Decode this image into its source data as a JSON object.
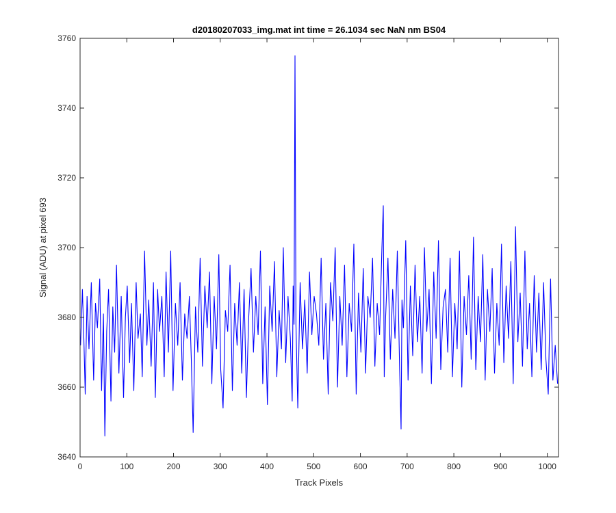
{
  "chart_data": {
    "type": "line",
    "title": "d20180207033_img.mat int time = 26.1034 sec  NaN nm BS04",
    "xlabel": "Track Pixels",
    "ylabel": "Signal (ADU) at pixel 693",
    "xlim": [
      0,
      1024
    ],
    "ylim": [
      3640,
      3760
    ],
    "xticks": [
      0,
      100,
      200,
      300,
      400,
      500,
      600,
      700,
      800,
      900,
      1000
    ],
    "yticks": [
      3640,
      3660,
      3680,
      3700,
      3720,
      3740,
      3760
    ],
    "grid": false,
    "legend": "none",
    "series": [
      {
        "color": "#0000ff",
        "x": [
          1,
          5,
          8,
          11,
          15,
          19,
          24,
          29,
          33,
          37,
          42,
          46,
          50,
          53,
          57,
          61,
          66,
          70,
          74,
          78,
          83,
          88,
          93,
          97,
          101,
          106,
          110,
          115,
          120,
          124,
          129,
          133,
          138,
          143,
          147,
          152,
          157,
          161,
          166,
          170,
          175,
          180,
          184,
          189,
          194,
          199,
          204,
          209,
          214,
          219,
          224,
          229,
          234,
          238,
          242,
          247,
          252,
          257,
          262,
          267,
          272,
          277,
          282,
          287,
          292,
          297,
          301,
          306,
          311,
          316,
          321,
          326,
          331,
          336,
          341,
          346,
          351,
          356,
          361,
          366,
          371,
          376,
          381,
          386,
          391,
          396,
          401,
          406,
          411,
          416,
          421,
          426,
          431,
          435,
          440,
          445,
          450,
          454,
          456,
          458,
          460,
          462,
          466,
          471,
          476,
          481,
          486,
          491,
          496,
          501,
          506,
          511,
          516,
          521,
          526,
          531,
          536,
          541,
          546,
          551,
          556,
          561,
          566,
          571,
          576,
          581,
          586,
          591,
          596,
          601,
          606,
          611,
          616,
          621,
          626,
          631,
          636,
          641,
          646,
          649,
          651,
          654,
          659,
          664,
          669,
          674,
          679,
          684,
          687,
          689,
          692,
          697,
          702,
          707,
          712,
          717,
          722,
          727,
          732,
          737,
          742,
          747,
          752,
          757,
          762,
          767,
          772,
          777,
          782,
          787,
          792,
          797,
          802,
          807,
          812,
          817,
          822,
          827,
          832,
          837,
          842,
          847,
          852,
          857,
          862,
          867,
          872,
          877,
          882,
          887,
          892,
          897,
          902,
          907,
          912,
          917,
          922,
          927,
          932,
          937,
          942,
          947,
          952,
          957,
          962,
          967,
          972,
          977,
          982,
          987,
          992,
          997,
          1002,
          1007,
          1012,
          1017,
          1022
        ],
        "y": [
          3672,
          3688,
          3674,
          3658,
          3686,
          3671,
          3690,
          3662,
          3684,
          3677,
          3691,
          3659,
          3681,
          3646,
          3676,
          3688,
          3656,
          3683,
          3670,
          3695,
          3664,
          3686,
          3657,
          3680,
          3689,
          3667,
          3684,
          3659,
          3690,
          3674,
          3681,
          3663,
          3699,
          3672,
          3685,
          3666,
          3690,
          3657,
          3688,
          3676,
          3686,
          3663,
          3693,
          3670,
          3699,
          3659,
          3684,
          3672,
          3690,
          3662,
          3681,
          3674,
          3686,
          3668,
          3647,
          3683,
          3670,
          3697,
          3666,
          3689,
          3677,
          3693,
          3661,
          3686,
          3671,
          3698,
          3665,
          3654,
          3682,
          3676,
          3695,
          3659,
          3684,
          3672,
          3690,
          3664,
          3688,
          3657,
          3680,
          3694,
          3670,
          3686,
          3675,
          3699,
          3661,
          3683,
          3655,
          3689,
          3676,
          3696,
          3663,
          3682,
          3671,
          3700,
          3667,
          3686,
          3674,
          3656,
          3689,
          3678,
          3755,
          3678,
          3654,
          3690,
          3671,
          3685,
          3664,
          3693,
          3675,
          3686,
          3681,
          3672,
          3697,
          3668,
          3684,
          3658,
          3690,
          3679,
          3700,
          3660,
          3686,
          3672,
          3695,
          3663,
          3684,
          3676,
          3701,
          3658,
          3687,
          3670,
          3694,
          3664,
          3686,
          3680,
          3697,
          3666,
          3684,
          3675,
          3700,
          3712,
          3663,
          3680,
          3697,
          3668,
          3688,
          3674,
          3699,
          3665,
          3648,
          3685,
          3677,
          3702,
          3662,
          3689,
          3669,
          3695,
          3673,
          3686,
          3664,
          3700,
          3676,
          3688,
          3661,
          3693,
          3674,
          3702,
          3665,
          3683,
          3688,
          3670,
          3697,
          3663,
          3684,
          3671,
          3699,
          3660,
          3686,
          3675,
          3692,
          3668,
          3703,
          3665,
          3686,
          3673,
          3698,
          3662,
          3688,
          3676,
          3694,
          3664,
          3684,
          3672,
          3701,
          3667,
          3689,
          3674,
          3696,
          3661,
          3706,
          3673,
          3687,
          3666,
          3699,
          3671,
          3684,
          3663,
          3692,
          3670,
          3687,
          3665,
          3690,
          3668,
          3658,
          3691,
          3662,
          3672,
          3661
        ]
      }
    ]
  }
}
